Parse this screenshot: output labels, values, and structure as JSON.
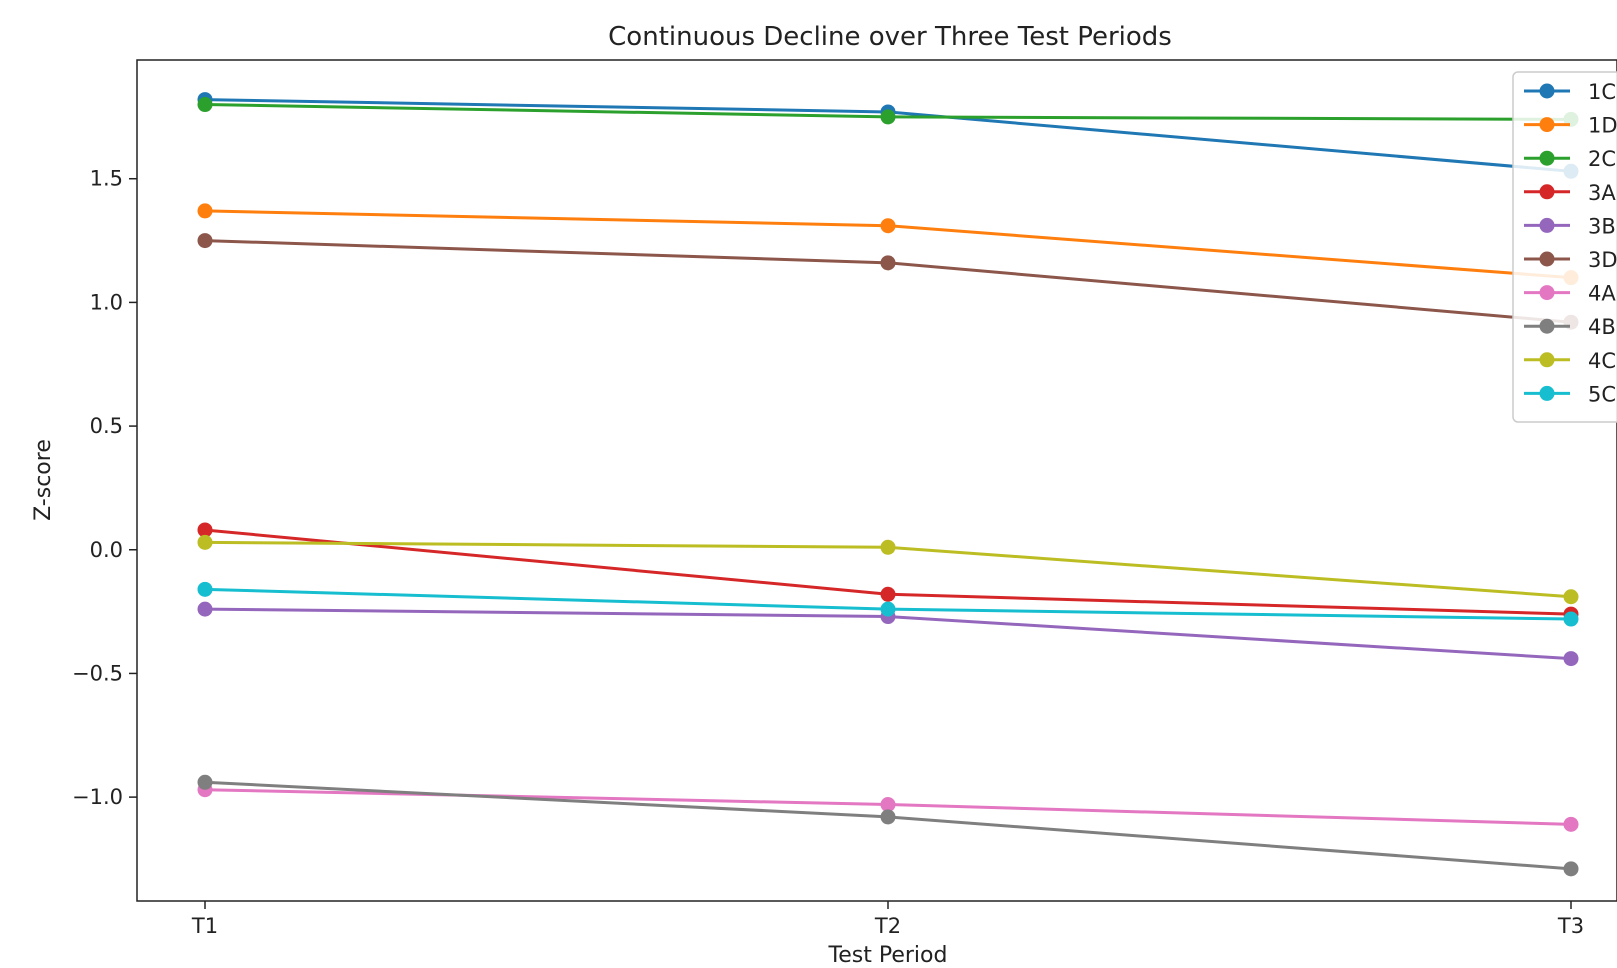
{
  "chart_data": {
    "type": "line",
    "title": "Continuous Decline over Three Test Periods",
    "xlabel": "Test Period",
    "ylabel": "Z-score",
    "categories": [
      "T1",
      "T2",
      "T3"
    ],
    "ylim": [
      -1.42,
      1.98
    ],
    "yticks": [
      -1.0,
      -0.5,
      0.0,
      0.5,
      1.0,
      1.5
    ],
    "ytick_labels": [
      "−1.0",
      "−0.5",
      "0.0",
      "0.5",
      "1.0",
      "1.5"
    ],
    "grid": false,
    "legend_position": "top-right",
    "series": [
      {
        "name": "1C",
        "color": "#1f77b4",
        "values": [
          1.82,
          1.77,
          1.53
        ]
      },
      {
        "name": "1D",
        "color": "#ff7f0e",
        "values": [
          1.37,
          1.31,
          1.1
        ]
      },
      {
        "name": "2C",
        "color": "#2ca02c",
        "values": [
          1.8,
          1.75,
          1.74
        ]
      },
      {
        "name": "3A",
        "color": "#d62728",
        "values": [
          0.08,
          -0.18,
          -0.26
        ]
      },
      {
        "name": "3B",
        "color": "#9467bd",
        "values": [
          -0.24,
          -0.27,
          -0.44
        ]
      },
      {
        "name": "3D",
        "color": "#8c564b",
        "values": [
          1.25,
          1.16,
          0.92
        ]
      },
      {
        "name": "4A",
        "color": "#e377c2",
        "values": [
          -0.97,
          -1.03,
          -1.11
        ]
      },
      {
        "name": "4B",
        "color": "#7f7f7f",
        "values": [
          -0.94,
          -1.08,
          -1.29
        ]
      },
      {
        "name": "4C",
        "color": "#bcbd22",
        "values": [
          0.03,
          0.01,
          -0.19
        ]
      },
      {
        "name": "5C",
        "color": "#17becf",
        "values": [
          -0.16,
          -0.24,
          -0.28
        ]
      }
    ]
  }
}
